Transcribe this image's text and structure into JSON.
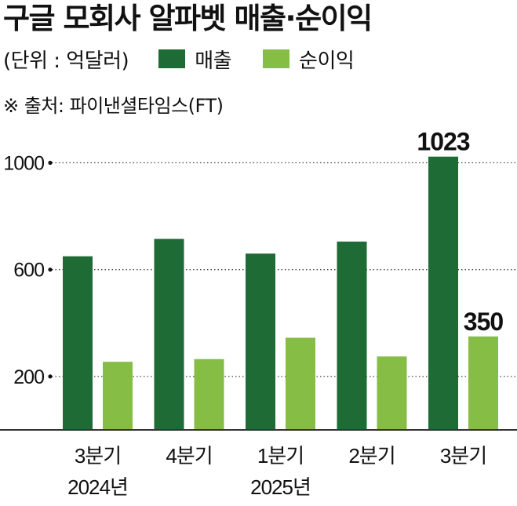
{
  "title": "구글 모회사 알파벳 매출·순이익",
  "unit_label": "(단위 : 억달러)",
  "source": "※ 출처: 파이낸셜타임스(FT)",
  "colors": {
    "revenue": "#1e6b35",
    "net_income": "#86bd45",
    "grid": "#444444",
    "axis": "#333333"
  },
  "chart_data": {
    "type": "bar",
    "title": "구글 모회사 알파벳 매출·순이익",
    "categories": [
      "3분기\n2024년",
      "4분기",
      "1분기\n2025년",
      "2분기",
      "3분기"
    ],
    "series": [
      {
        "name": "매출",
        "values": [
          650,
          715,
          660,
          705,
          1023
        ]
      },
      {
        "name": "순이익",
        "values": [
          255,
          265,
          345,
          275,
          350
        ]
      }
    ],
    "yticks": [
      200,
      600,
      1000
    ],
    "ylim": [
      0,
      1020
    ],
    "data_labels": [
      {
        "series": 0,
        "index": 4,
        "text": "1023"
      },
      {
        "series": 1,
        "index": 4,
        "text": "350"
      }
    ],
    "grid": true,
    "legend_position": "top-left"
  }
}
